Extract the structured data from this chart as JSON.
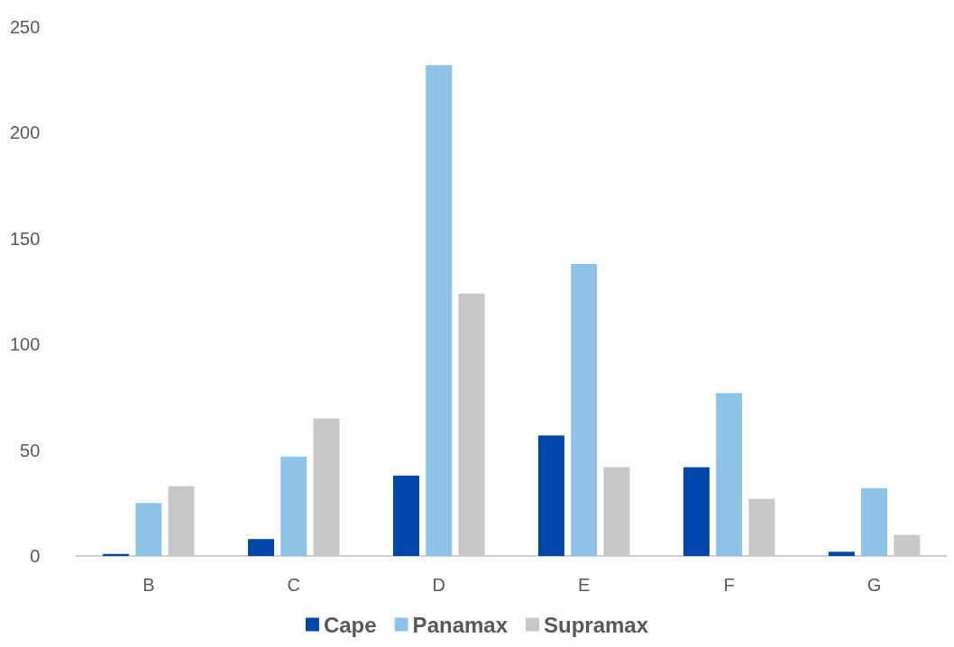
{
  "chart_data": {
    "type": "bar",
    "categories": [
      "B",
      "C",
      "D",
      "E",
      "F",
      "G"
    ],
    "series": [
      {
        "name": "Cape",
        "color": "#0047ab",
        "values": [
          1,
          8,
          38,
          57,
          42,
          2
        ]
      },
      {
        "name": "Panamax",
        "color": "#8dc3e6",
        "values": [
          25,
          47,
          232,
          138,
          77,
          32
        ]
      },
      {
        "name": "Supramax",
        "color": "#c8c8c8",
        "values": [
          33,
          65,
          124,
          42,
          27,
          10
        ]
      }
    ],
    "ylim": [
      0,
      250
    ],
    "yticks": [
      0,
      50,
      100,
      150,
      200,
      250
    ],
    "grid": false,
    "legend": "bottom"
  }
}
